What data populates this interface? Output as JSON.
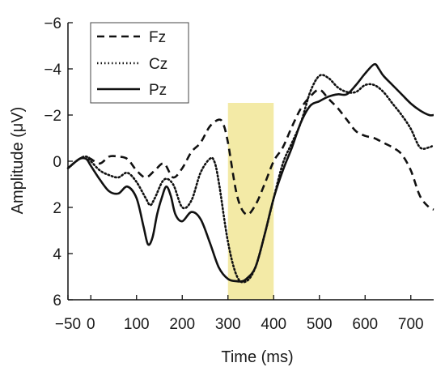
{
  "chart_data": {
    "type": "line",
    "xlabel": "Time (ms)",
    "ylabel": "Amplitude (μV)",
    "xlim": [
      -50,
      750
    ],
    "ylim": [
      6,
      -6
    ],
    "y_axis_inverted": true,
    "xticks": [
      -50,
      0,
      100,
      200,
      300,
      400,
      500,
      600,
      700
    ],
    "xtick_labels": [
      "−50",
      "0",
      "100",
      "200",
      "300",
      "400",
      "500",
      "600",
      "700"
    ],
    "yticks": [
      -6,
      -4,
      -2,
      0,
      2,
      4,
      6
    ],
    "ytick_labels": [
      "−6",
      "−4",
      "−2",
      "0",
      "2",
      "4",
      "6"
    ],
    "highlight": {
      "x_start": 300,
      "x_end": 400,
      "color": "#f3eaa6"
    },
    "legend_position": "top-left",
    "series": [
      {
        "name": "Fz",
        "style": "dashed",
        "color": "#111111",
        "x": [
          -50,
          -25,
          -10,
          0,
          20,
          40,
          60,
          80,
          100,
          120,
          140,
          160,
          180,
          200,
          220,
          240,
          260,
          280,
          290,
          300,
          320,
          340,
          360,
          380,
          400,
          420,
          440,
          460,
          480,
          500,
          520,
          540,
          560,
          580,
          600,
          620,
          640,
          660,
          680,
          700,
          720,
          740,
          750
        ],
        "y": [
          0.3,
          -0.1,
          -0.2,
          -0.1,
          0.1,
          -0.2,
          -0.2,
          -0.1,
          0.4,
          0.7,
          0.4,
          0.1,
          0.7,
          0.3,
          -0.4,
          -0.8,
          -1.5,
          -1.8,
          -1.6,
          -0.8,
          1.5,
          2.3,
          1.9,
          1.0,
          0.0,
          -0.6,
          -1.5,
          -2.3,
          -2.8,
          -3.1,
          -2.7,
          -2.3,
          -1.8,
          -1.3,
          -1.1,
          -1.0,
          -0.8,
          -0.6,
          -0.3,
          0.4,
          1.5,
          2.0,
          2.1
        ]
      },
      {
        "name": "Cz",
        "style": "dotted",
        "color": "#111111",
        "x": [
          -50,
          -25,
          -10,
          0,
          20,
          40,
          60,
          80,
          100,
          120,
          130,
          140,
          160,
          180,
          200,
          220,
          240,
          260,
          270,
          280,
          300,
          320,
          340,
          360,
          380,
          400,
          420,
          440,
          460,
          480,
          500,
          520,
          540,
          560,
          580,
          600,
          620,
          640,
          660,
          680,
          700,
          720,
          740,
          750
        ],
        "y": [
          0.3,
          -0.1,
          -0.2,
          0.0,
          0.4,
          0.6,
          0.7,
          0.5,
          0.9,
          1.6,
          1.9,
          1.6,
          0.8,
          1.0,
          2.0,
          1.7,
          0.5,
          -0.1,
          0.0,
          0.9,
          3.5,
          5.0,
          5.2,
          4.6,
          3.2,
          1.6,
          0.1,
          -0.8,
          -1.7,
          -3.0,
          -3.7,
          -3.6,
          -3.2,
          -3.0,
          -3.0,
          -3.3,
          -3.3,
          -3.0,
          -2.5,
          -2.0,
          -1.4,
          -0.6,
          -0.6,
          -0.7
        ]
      },
      {
        "name": "Pz",
        "style": "solid",
        "color": "#111111",
        "x": [
          -50,
          -25,
          -10,
          0,
          20,
          40,
          60,
          80,
          100,
          115,
          125,
          135,
          145,
          155,
          165,
          175,
          185,
          200,
          220,
          240,
          260,
          280,
          300,
          320,
          330,
          340,
          360,
          380,
          400,
          420,
          440,
          460,
          480,
          500,
          520,
          540,
          560,
          580,
          600,
          620,
          630,
          640,
          660,
          680,
          700,
          720,
          740,
          750
        ],
        "y": [
          0.3,
          -0.1,
          -0.1,
          0.2,
          0.8,
          1.3,
          1.4,
          1.1,
          1.6,
          2.8,
          3.6,
          3.3,
          2.3,
          1.6,
          1.1,
          1.5,
          2.3,
          2.6,
          2.2,
          2.5,
          3.5,
          4.6,
          5.1,
          5.2,
          5.2,
          5.1,
          4.6,
          3.2,
          1.6,
          0.4,
          -0.6,
          -1.7,
          -2.4,
          -2.6,
          -2.8,
          -2.9,
          -2.9,
          -3.3,
          -3.8,
          -4.2,
          -4.0,
          -3.7,
          -3.3,
          -2.9,
          -2.5,
          -2.2,
          -2.0,
          -2.0
        ]
      }
    ]
  }
}
